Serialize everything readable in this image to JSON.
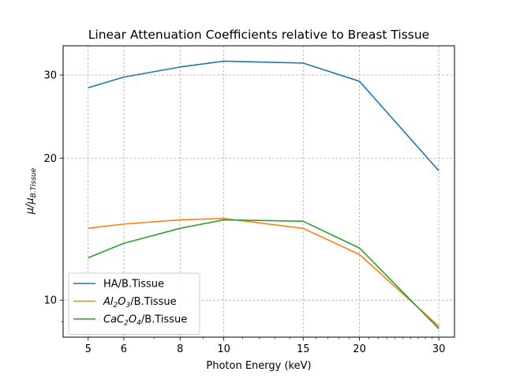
{
  "chart_data": {
    "type": "line",
    "title": "Linear Attenuation Coefficients relative to Breast Tissue",
    "xlabel": "Photon Energy (keV)",
    "ylabel_main": "μ/μ",
    "ylabel_sub": "B.Tissue",
    "x": [
      5,
      6,
      8,
      10,
      15,
      20,
      30
    ],
    "x_scale": "log",
    "y_scale": "log",
    "xlim": [
      4.4,
      32.5
    ],
    "ylim": [
      8.35,
      34.6
    ],
    "xticks": [
      "5",
      "6",
      "8",
      "10",
      "15",
      "20",
      "30"
    ],
    "yticks": [
      "10",
      "20",
      "30"
    ],
    "grid": true,
    "legend_position": "lower-left",
    "series": [
      {
        "name": "HA/B.Tissue",
        "name_formula": [
          [
            "HA/B.Tissue",
            false
          ]
        ],
        "color": "#1f77b4",
        "values": [
          28.2,
          29.7,
          31.2,
          32.1,
          31.8,
          29.1,
          18.8
        ]
      },
      {
        "name": "Al2O3/B.Tissue",
        "name_formula": [
          [
            "Al",
            true
          ],
          [
            "2",
            "sub"
          ],
          [
            "O",
            true
          ],
          [
            "3",
            "sub"
          ],
          [
            "/B.Tissue",
            false
          ]
        ],
        "color": "#ff7f0e",
        "values": [
          14.2,
          14.5,
          14.8,
          14.9,
          14.2,
          12.5,
          8.8
        ]
      },
      {
        "name": "CaC2O4/B.Tissue",
        "name_formula": [
          [
            "CaC",
            true
          ],
          [
            "2",
            "sub"
          ],
          [
            "O",
            true
          ],
          [
            "4",
            "sub"
          ],
          [
            "/B.Tissue",
            false
          ]
        ],
        "color": "#2ca02c",
        "values": [
          12.3,
          13.2,
          14.2,
          14.8,
          14.7,
          12.9,
          8.7
        ]
      }
    ]
  }
}
